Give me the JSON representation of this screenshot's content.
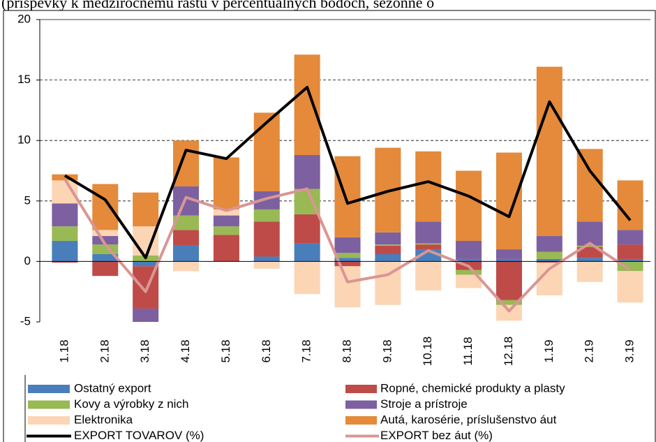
{
  "chart_data": {
    "type": "stacked-bar-line",
    "subtitle": "(príspevky k medziročnému rastu v percentuálnych bodoch, sezónne o",
    "categories": [
      "1.18",
      "2.18",
      "3.18",
      "4.18",
      "5.18",
      "6.18",
      "7.18",
      "8.18",
      "9.18",
      "10.18",
      "11.18",
      "12.18",
      "1.19",
      "2.19",
      "3.19"
    ],
    "ylim": [
      -5,
      20
    ],
    "yticks": [
      -5,
      0,
      5,
      10,
      15,
      20
    ],
    "grid": true,
    "series": [
      {
        "name": "Ostatný export",
        "color": "#4a7ebb",
        "values": [
          1.7,
          0.6,
          -0.4,
          1.3,
          0,
          0.4,
          1.5,
          0.3,
          0.6,
          1.0,
          0.2,
          0.2,
          0.2,
          0.3,
          0.2
        ]
      },
      {
        "name": "Ropné, chemické produkty a plasty",
        "color": "#be4b48",
        "values": [
          -0.1,
          -1.2,
          -3.5,
          1.3,
          2.2,
          2.9,
          2.4,
          -0.4,
          0.7,
          0.4,
          -0.7,
          -3.2,
          -0.1,
          0.9,
          1.2
        ]
      },
      {
        "name": "Kovy a výrobky z nich",
        "color": "#98b954",
        "values": [
          1.2,
          0.8,
          0.5,
          1.2,
          0.7,
          1.0,
          2.1,
          0.4,
          0.1,
          0.1,
          -0.4,
          -0.4,
          0.6,
          0.1,
          -0.8
        ]
      },
      {
        "name": "Stroje a prístroje",
        "color": "#7d60a0",
        "values": [
          1.9,
          0.7,
          -1.2,
          2.4,
          0.9,
          1.5,
          2.8,
          1.3,
          1.0,
          1.8,
          1.5,
          0.8,
          1.3,
          2.0,
          1.2
        ]
      },
      {
        "name": "Elektronika",
        "color": "#fcd5b5",
        "values": [
          1.9,
          0.5,
          2.4,
          -0.8,
          0.5,
          -0.6,
          -2.7,
          -3.4,
          -3.6,
          -2.4,
          -1.1,
          -1.3,
          -2.7,
          -1.7,
          -2.6
        ]
      },
      {
        "name": "Autá, karosérie, príslušenstvo áut",
        "color": "#e48a3a",
        "values": [
          0.5,
          3.8,
          2.8,
          3.8,
          4.3,
          6.5,
          8.3,
          6.7,
          7.0,
          5.8,
          5.8,
          8.0,
          14.0,
          6.0,
          4.1
        ]
      }
    ],
    "line_series": [
      {
        "name": "EXPORT TOVAROV (%)",
        "color": "#000000",
        "values": [
          7.1,
          5.1,
          0.3,
          9.2,
          8.5,
          11.5,
          14.4,
          4.8,
          5.8,
          6.6,
          5.4,
          3.7,
          13.2,
          7.5,
          3.4
        ]
      },
      {
        "name": "EXPORT bez áut (%)",
        "color": "#d99694",
        "values": [
          6.8,
          1.4,
          -2.5,
          5.3,
          4.2,
          5.2,
          6.0,
          -1.7,
          -1.1,
          0.9,
          -0.4,
          -4.1,
          -0.6,
          1.5,
          -0.7
        ]
      }
    ]
  }
}
